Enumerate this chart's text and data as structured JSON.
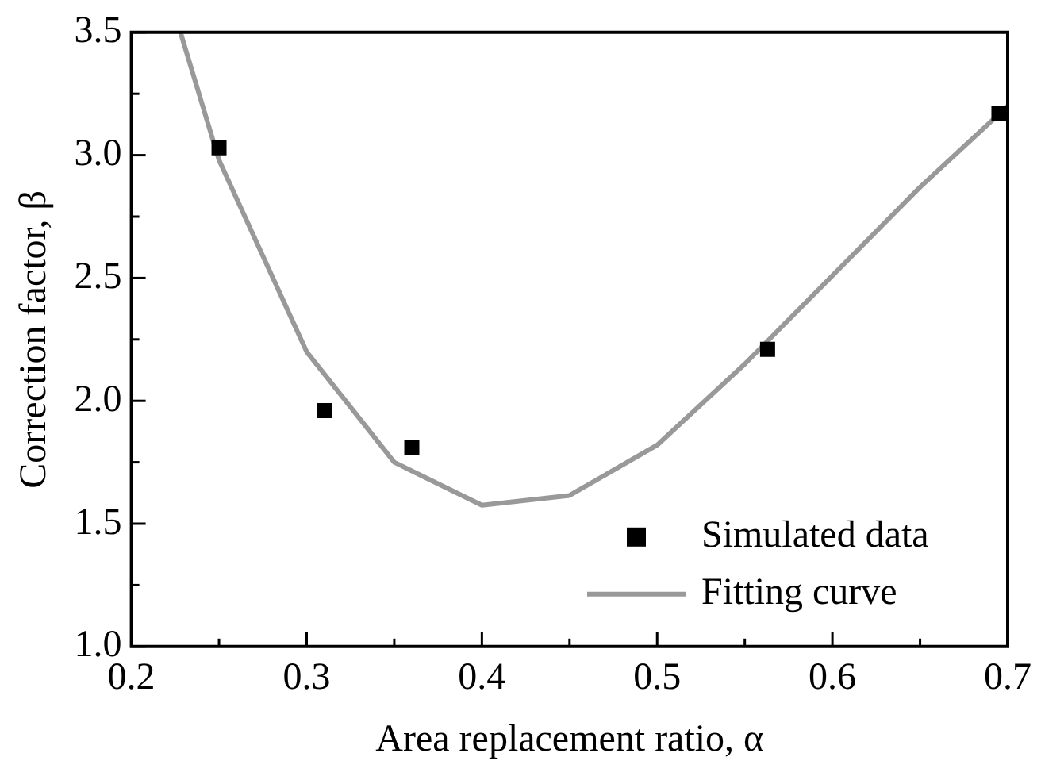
{
  "chart_data": {
    "type": "scatter",
    "xlabel": "Area replacement ratio, α",
    "ylabel": "Correction factor, β",
    "xlim": [
      0.2,
      0.7
    ],
    "ylim": [
      1.0,
      3.5
    ],
    "xticks": [
      {
        "value": 0.2,
        "label": "0.2"
      },
      {
        "value": 0.25,
        "label": null
      },
      {
        "value": 0.3,
        "label": "0.3"
      },
      {
        "value": 0.35,
        "label": null
      },
      {
        "value": 0.4,
        "label": "0.4"
      },
      {
        "value": 0.45,
        "label": null
      },
      {
        "value": 0.5,
        "label": "0.5"
      },
      {
        "value": 0.55,
        "label": null
      },
      {
        "value": 0.6,
        "label": "0.6"
      },
      {
        "value": 0.65,
        "label": null
      },
      {
        "value": 0.7,
        "label": "0.7"
      }
    ],
    "yticks": [
      {
        "value": 1.0,
        "label": "1.0"
      },
      {
        "value": 1.25,
        "label": null
      },
      {
        "value": 1.5,
        "label": "1.5"
      },
      {
        "value": 1.75,
        "label": null
      },
      {
        "value": 2.0,
        "label": "2.0"
      },
      {
        "value": 2.25,
        "label": null
      },
      {
        "value": 2.5,
        "label": "2.5"
      },
      {
        "value": 2.75,
        "label": null
      },
      {
        "value": 3.0,
        "label": "3.0"
      },
      {
        "value": 3.25,
        "label": null
      },
      {
        "value": 3.5,
        "label": "3.5"
      }
    ],
    "legend": "bottom right",
    "grid": false,
    "series": [
      {
        "name": "Simulated data",
        "type": "scatter",
        "marker": "square",
        "color": "#000000",
        "x": [
          0.25,
          0.31,
          0.36,
          0.563,
          0.695
        ],
        "values": [
          3.03,
          1.96,
          1.81,
          2.21,
          3.17
        ]
      },
      {
        "name": "Fitting curve",
        "type": "line",
        "marker": "none",
        "color": "#999999",
        "x": [
          0.228,
          0.25,
          0.3,
          0.35,
          0.4,
          0.45,
          0.5,
          0.55,
          0.6,
          0.65,
          0.7
        ],
        "values": [
          3.5,
          2.98,
          2.2,
          1.75,
          1.575,
          1.615,
          1.82,
          2.15,
          2.51,
          2.87,
          3.2
        ]
      }
    ]
  }
}
